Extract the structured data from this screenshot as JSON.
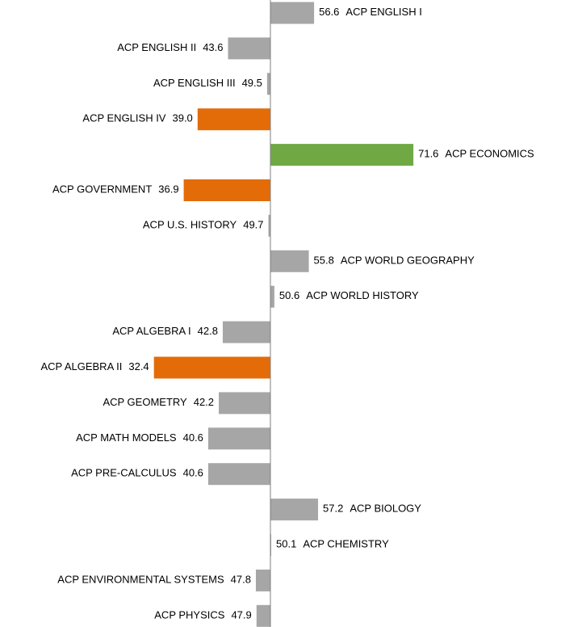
{
  "chart_data": {
    "type": "bar",
    "orientation": "horizontal",
    "categories": [
      "ACP ENGLISH I",
      "ACP ENGLISH II",
      "ACP ENGLISH III",
      "ACP ENGLISH IV",
      "ACP ECONOMICS",
      "ACP GOVERNMENT",
      "ACP U.S. HISTORY",
      "ACP WORLD GEOGRAPHY",
      "ACP WORLD HISTORY",
      "ACP ALGEBRA I",
      "ACP ALGEBRA II",
      "ACP GEOMETRY",
      "ACP MATH MODELS",
      "ACP PRE-CALCULUS",
      "ACP BIOLOGY",
      "ACP CHEMISTRY",
      "ACP ENVIRONMENTAL SYSTEMS",
      "ACP PHYSICS"
    ],
    "values": [
      56.6,
      43.6,
      49.5,
      39.0,
      71.6,
      36.9,
      49.7,
      55.8,
      50.6,
      42.8,
      32.4,
      42.2,
      40.6,
      40.6,
      57.2,
      50.1,
      47.8,
      47.9
    ],
    "value_labels": [
      "56.6",
      "43.6",
      "49.5",
      "39.0",
      "71.6",
      "36.9",
      "49.7",
      "55.8",
      "50.6",
      "42.8",
      "32.4",
      "42.2",
      "40.6",
      "40.6",
      "57.2",
      "50.1",
      "47.8",
      "47.9"
    ],
    "colors": [
      "#a6a6a6",
      "#a6a6a6",
      "#a6a6a6",
      "#e36c09",
      "#70a844",
      "#e36c09",
      "#a6a6a6",
      "#a6a6a6",
      "#a6a6a6",
      "#a6a6a6",
      "#e36c09",
      "#a6a6a6",
      "#a6a6a6",
      "#a6a6a6",
      "#a6a6a6",
      "#a6a6a6",
      "#a6a6a6",
      "#a6a6a6"
    ],
    "baseline": 50,
    "xlim": [
      30,
      75
    ]
  }
}
